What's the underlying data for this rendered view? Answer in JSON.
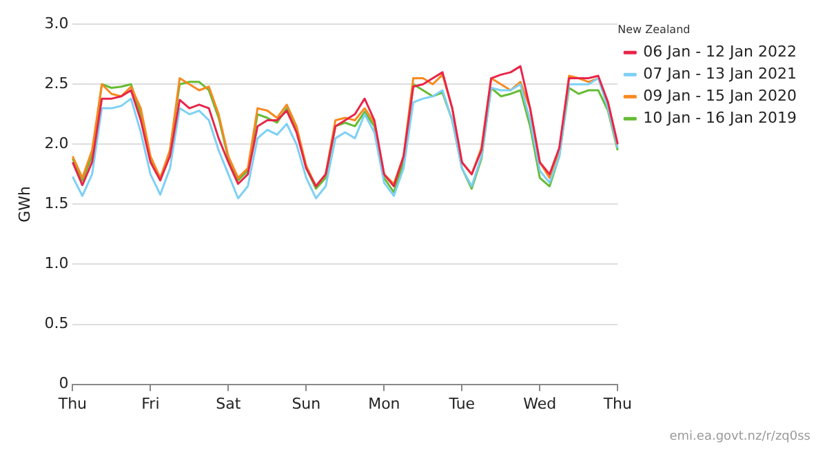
{
  "chart_data": {
    "type": "line",
    "ylabel": "GWh",
    "legend_title": "New Zealand",
    "categories": [
      "Thu",
      null,
      null,
      null,
      null,
      null,
      null,
      null,
      "Fri",
      null,
      null,
      null,
      null,
      null,
      null,
      null,
      "Sat",
      null,
      null,
      null,
      null,
      null,
      null,
      null,
      "Sun",
      null,
      null,
      null,
      null,
      null,
      null,
      null,
      "Mon",
      null,
      null,
      null,
      null,
      null,
      null,
      null,
      "Tue",
      null,
      null,
      null,
      null,
      null,
      null,
      null,
      "Wed",
      null,
      null,
      null,
      null,
      null,
      null,
      null,
      "Thu"
    ],
    "series": [
      {
        "name": "06 Jan - 12 Jan 2022",
        "color": "#e8254a",
        "values": [
          1.85,
          1.66,
          1.85,
          2.38,
          2.38,
          2.4,
          2.45,
          2.2,
          1.85,
          1.7,
          1.9,
          2.37,
          2.3,
          2.33,
          2.3,
          2.05,
          1.85,
          1.67,
          1.75,
          2.15,
          2.2,
          2.2,
          2.28,
          2.1,
          1.8,
          1.65,
          1.75,
          2.15,
          2.2,
          2.25,
          2.38,
          2.2,
          1.75,
          1.65,
          1.9,
          2.48,
          2.5,
          2.55,
          2.6,
          2.3,
          1.85,
          1.75,
          1.95,
          2.55,
          2.58,
          2.6,
          2.65,
          2.3,
          1.85,
          1.75,
          1.97,
          2.55,
          2.55,
          2.55,
          2.57,
          2.35,
          2.0
        ]
      },
      {
        "name": "07 Jan - 13 Jan 2021",
        "color": "#7dd0f5",
        "values": [
          1.73,
          1.57,
          1.75,
          2.3,
          2.3,
          2.32,
          2.38,
          2.1,
          1.75,
          1.58,
          1.8,
          2.3,
          2.25,
          2.28,
          2.2,
          1.95,
          1.75,
          1.55,
          1.65,
          2.05,
          2.12,
          2.08,
          2.17,
          2.0,
          1.72,
          1.55,
          1.65,
          2.05,
          2.1,
          2.05,
          2.25,
          2.1,
          1.68,
          1.57,
          1.8,
          2.35,
          2.38,
          2.4,
          2.45,
          2.2,
          1.8,
          1.65,
          1.9,
          2.47,
          2.45,
          2.45,
          2.5,
          2.2,
          1.78,
          1.68,
          1.9,
          2.5,
          2.5,
          2.5,
          2.55,
          2.3,
          1.97
        ]
      },
      {
        "name": "09 Jan - 15 Jan 2020",
        "color": "#f7891e",
        "values": [
          1.9,
          1.72,
          1.95,
          2.5,
          2.42,
          2.4,
          2.48,
          2.3,
          1.9,
          1.72,
          1.95,
          2.55,
          2.5,
          2.45,
          2.48,
          2.25,
          1.9,
          1.72,
          1.8,
          2.3,
          2.28,
          2.22,
          2.33,
          2.15,
          1.82,
          1.65,
          1.75,
          2.2,
          2.22,
          2.2,
          2.3,
          2.18,
          1.75,
          1.67,
          1.9,
          2.55,
          2.55,
          2.5,
          2.58,
          2.3,
          1.85,
          1.75,
          1.97,
          2.55,
          2.5,
          2.45,
          2.52,
          2.3,
          1.85,
          1.72,
          1.95,
          2.57,
          2.55,
          2.52,
          2.55,
          2.35,
          2.0
        ]
      },
      {
        "name": "10 Jan - 16 Jan 2019",
        "color": "#66bb33",
        "values": [
          1.88,
          1.7,
          1.9,
          2.5,
          2.47,
          2.48,
          2.5,
          2.25,
          1.88,
          1.7,
          1.95,
          2.5,
          2.52,
          2.52,
          2.45,
          2.22,
          1.88,
          1.7,
          1.78,
          2.25,
          2.22,
          2.18,
          2.3,
          2.12,
          1.8,
          1.63,
          1.72,
          2.15,
          2.18,
          2.15,
          2.27,
          2.15,
          1.72,
          1.6,
          1.85,
          2.5,
          2.45,
          2.4,
          2.43,
          2.2,
          1.8,
          1.63,
          1.88,
          2.47,
          2.4,
          2.42,
          2.45,
          2.15,
          1.72,
          1.65,
          1.9,
          2.47,
          2.42,
          2.45,
          2.45,
          2.28,
          1.95
        ]
      }
    ],
    "ylim": [
      0,
      3
    ],
    "yticks": [
      0,
      {
        "value": 0.5,
        "label": "0.5"
      },
      {
        "value": 1,
        "label": "1.0"
      },
      {
        "value": 1.5,
        "label": "1.5"
      },
      {
        "value": 2,
        "label": "2.0"
      },
      {
        "value": 2.5,
        "label": "2.5"
      },
      {
        "value": 3,
        "label": "3.0"
      }
    ],
    "grid": "y",
    "legend": "top right",
    "marker": "none",
    "line_style": "solid",
    "annotations": [
      "emi.ea.govt.nz/r/zq0ss"
    ]
  }
}
